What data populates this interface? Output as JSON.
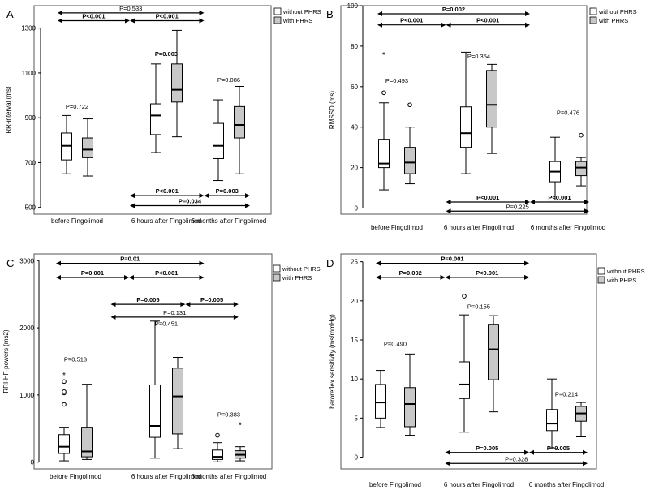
{
  "legend": {
    "without": "without PHRS",
    "with": "with PHRS"
  },
  "colors": {
    "without": "#ffffff",
    "with": "#c8c8c8",
    "line": "#000000"
  },
  "chart_data": [
    {
      "type": "box",
      "panel_letter": "A",
      "ylabel": "RR-interval (ms)",
      "ylim": [
        470,
        1400
      ],
      "yticks": [
        500,
        700,
        900,
        1100,
        1300
      ],
      "categories": [
        "before Fingolimod",
        "6 hours after Fingolimod",
        "6 months after Fingolimod"
      ],
      "series": [
        {
          "name": "without PHRS",
          "boxes": [
            {
              "min": 650,
              "q1": 712,
              "median": 775,
              "q3": 832,
              "max": 910,
              "outliers": [],
              "extremes": []
            },
            {
              "min": 745,
              "q1": 825,
              "median": 910,
              "q3": 962,
              "max": 1140,
              "outliers": [],
              "extremes": []
            },
            {
              "min": 620,
              "q1": 718,
              "median": 775,
              "q3": 875,
              "max": 980,
              "outliers": [],
              "extremes": []
            }
          ]
        },
        {
          "name": "with PHRS",
          "boxes": [
            {
              "min": 640,
              "q1": 722,
              "median": 758,
              "q3": 810,
              "max": 895,
              "outliers": [],
              "extremes": []
            },
            {
              "min": 815,
              "q1": 970,
              "median": 1025,
              "q3": 1140,
              "max": 1290,
              "outliers": [],
              "extremes": []
            },
            {
              "min": 650,
              "q1": 810,
              "median": 868,
              "q3": 950,
              "max": 1040,
              "outliers": [],
              "extremes": []
            }
          ]
        }
      ],
      "annotations": [
        {
          "label": "P=0.722",
          "x": 0.5,
          "y": 940
        },
        {
          "label": "P=0.003",
          "x": 1.5,
          "y": 1175,
          "bold": true
        },
        {
          "label": "P=0.086",
          "x": 2.5,
          "y": 1060
        }
      ],
      "brackets": [
        {
          "label": "P=0.533",
          "from": 0,
          "to": 2,
          "y": 1368,
          "bold": false
        },
        {
          "label": "P<0.001",
          "from": 0,
          "to": 1,
          "y": 1333,
          "bold": true
        },
        {
          "label": "P<0.001",
          "from": 1,
          "to": 2,
          "y": 1333,
          "bold": true
        },
        {
          "label": "P<0.001",
          "from": 1,
          "to": 2,
          "y": 553,
          "bold": true,
          "row": "bottom"
        },
        {
          "label": "P=0.003",
          "from": 2,
          "to": 3,
          "y": 553,
          "bold": true,
          "row": "bottom"
        },
        {
          "label": "P=0.034",
          "from": 1,
          "to": 3,
          "y": 508,
          "bold": true,
          "row": "bottom"
        }
      ]
    },
    {
      "type": "box",
      "panel_letter": "B",
      "ylabel": "RMSSD (ms)",
      "ylim": [
        -3,
        100
      ],
      "yticks": [
        0,
        20,
        40,
        60,
        80,
        100
      ],
      "categories": [
        "before Fingolimod",
        "6 hours after Fingolimod",
        "6 months after Fingolimod"
      ],
      "series": [
        {
          "name": "without PHRS",
          "boxes": [
            {
              "min": 9,
              "q1": 20,
              "median": 22,
              "q3": 34,
              "max": 52,
              "outliers": [
                57
              ],
              "extremes": [
                76
              ]
            },
            {
              "min": 17,
              "q1": 30,
              "median": 37,
              "q3": 50,
              "max": 77,
              "outliers": [],
              "extremes": []
            },
            {
              "min": 4,
              "q1": 13,
              "median": 18,
              "q3": 23,
              "max": 35,
              "outliers": [],
              "extremes": []
            }
          ]
        },
        {
          "name": "with PHRS",
          "boxes": [
            {
              "min": 12,
              "q1": 17,
              "median": 22.5,
              "q3": 30,
              "max": 40,
              "outliers": [
                51
              ],
              "extremes": []
            },
            {
              "min": 27,
              "q1": 40,
              "median": 51,
              "q3": 68,
              "max": 71,
              "outliers": [],
              "extremes": []
            },
            {
              "min": 11,
              "q1": 16,
              "median": 20,
              "q3": 23,
              "max": 25,
              "outliers": [
                36
              ],
              "extremes": []
            }
          ]
        }
      ],
      "annotations": [
        {
          "label": "P=0.493",
          "x": 0.5,
          "y": 62
        },
        {
          "label": "P=0.354",
          "x": 1.5,
          "y": 74
        },
        {
          "label": "P=0.476",
          "x": 2.5,
          "y": 46
        }
      ],
      "brackets": [
        {
          "label": "P=0.002",
          "from": 0,
          "to": 2,
          "y": 96,
          "bold": true
        },
        {
          "label": "P<0.001",
          "from": 0,
          "to": 1,
          "y": 90.5,
          "bold": true
        },
        {
          "label": "P<0.001",
          "from": 1,
          "to": 2,
          "y": 90.5,
          "bold": true
        },
        {
          "label": "P<0.001",
          "from": 1,
          "to": 2,
          "y": 3,
          "bold": true,
          "row": "bottom"
        },
        {
          "label": "P<0.001",
          "from": 2,
          "to": 3,
          "y": 3,
          "bold": true,
          "row": "bottom"
        },
        {
          "label": "P=0.225",
          "from": 1,
          "to": 3,
          "y": -1.5,
          "bold": false,
          "row": "bottom"
        }
      ]
    },
    {
      "type": "box",
      "panel_letter": "C",
      "ylabel": "RRI-HF-powers (ms2)",
      "ylim": [
        -100,
        3100
      ],
      "yticks": [
        0,
        1000,
        2000,
        3000
      ],
      "categories": [
        "before Fingolimod",
        "6 hours after Fingolimod",
        "6 months after Fingolimod"
      ],
      "series": [
        {
          "name": "without PHRS",
          "boxes": [
            {
              "min": 20,
              "q1": 130,
              "median": 230,
              "q3": 410,
              "max": 520,
              "outliers": [
                860,
                1030,
                1050,
                1200
              ],
              "extremes": [
                1300
              ]
            },
            {
              "min": 60,
              "q1": 370,
              "median": 540,
              "q3": 1150,
              "max": 2100,
              "outliers": [],
              "extremes": []
            },
            {
              "min": 5,
              "q1": 40,
              "median": 80,
              "q3": 180,
              "max": 290,
              "outliers": [
                400
              ],
              "extremes": []
            }
          ]
        },
        {
          "name": "with PHRS",
          "boxes": [
            {
              "min": 40,
              "q1": 80,
              "median": 160,
              "q3": 520,
              "max": 1160,
              "outliers": [],
              "extremes": []
            },
            {
              "min": 200,
              "q1": 420,
              "median": 980,
              "q3": 1400,
              "max": 1560,
              "outliers": [],
              "extremes": []
            },
            {
              "min": 20,
              "q1": 60,
              "median": 110,
              "q3": 170,
              "max": 230,
              "outliers": [],
              "extremes": [
                560
              ]
            }
          ]
        }
      ],
      "annotations": [
        {
          "label": "P=0.513",
          "x": 0.5,
          "y": 1500
        },
        {
          "label": "P=0.451",
          "x": 1.5,
          "y": 2030
        },
        {
          "label": "P=0.383",
          "x": 2.5,
          "y": 680
        }
      ],
      "brackets": [
        {
          "label": "P=0.01",
          "from": 0,
          "to": 2,
          "y": 2960,
          "bold": true
        },
        {
          "label": "P=0.001",
          "from": 0,
          "to": 1,
          "y": 2750,
          "bold": true
        },
        {
          "label": "P<0.001",
          "from": 1,
          "to": 2,
          "y": 2750,
          "bold": true
        },
        {
          "label": "P=0.005",
          "from": 0.75,
          "to": 1.75,
          "y": 2350,
          "bold": true
        },
        {
          "label": "P=0.005",
          "from": 1.75,
          "to": 2.75,
          "y": 2350,
          "bold": true
        },
        {
          "label": "P=0.131",
          "from": 0.75,
          "to": 2.75,
          "y": 2160,
          "bold": false
        }
      ]
    },
    {
      "type": "box",
      "panel_letter": "D",
      "ylabel": "baroreflex sensitivity (ms/mmHg)",
      "ylim": [
        -1.5,
        26
      ],
      "yticks": [
        0,
        5,
        10,
        15,
        20,
        25
      ],
      "categories": [
        "before Fingolimod",
        "6 hours after Fingolimod",
        "6 months after Fingolimod"
      ],
      "series": [
        {
          "name": "without PHRS",
          "boxes": [
            {
              "min": 3.8,
              "q1": 5.0,
              "median": 7.0,
              "q3": 9.3,
              "max": 11.1,
              "outliers": [],
              "extremes": []
            },
            {
              "min": 3.2,
              "q1": 7.5,
              "median": 9.3,
              "q3": 12.2,
              "max": 18.2,
              "outliers": [
                20.6
              ],
              "extremes": []
            },
            {
              "min": 1.1,
              "q1": 3.4,
              "median": 4.3,
              "q3": 6.1,
              "max": 10.0,
              "outliers": [],
              "extremes": []
            }
          ]
        },
        {
          "name": "with PHRS",
          "boxes": [
            {
              "min": 2.8,
              "q1": 3.9,
              "median": 6.8,
              "q3": 8.9,
              "max": 13.2,
              "outliers": [],
              "extremes": []
            },
            {
              "min": 5.8,
              "q1": 9.9,
              "median": 13.8,
              "q3": 17.0,
              "max": 18.1,
              "outliers": [],
              "extremes": []
            },
            {
              "min": 2.6,
              "q1": 4.6,
              "median": 5.6,
              "q3": 6.5,
              "max": 7.0,
              "outliers": [],
              "extremes": []
            }
          ]
        }
      ],
      "annotations": [
        {
          "label": "P=0.490",
          "x": 0.5,
          "y": 14.2
        },
        {
          "label": "P=0.155",
          "x": 1.5,
          "y": 19.0
        },
        {
          "label": "P=0.214",
          "x": 2.5,
          "y": 7.8
        }
      ],
      "brackets": [
        {
          "label": "P=0.001",
          "from": 0,
          "to": 2,
          "y": 24.8,
          "bold": true
        },
        {
          "label": "P=0.002",
          "from": 0,
          "to": 1,
          "y": 23.0,
          "bold": true
        },
        {
          "label": "P<0.001",
          "from": 1,
          "to": 2,
          "y": 23.0,
          "bold": true
        },
        {
          "label": "P=0.005",
          "from": 1,
          "to": 2,
          "y": 0.6,
          "bold": true,
          "row": "bottom"
        },
        {
          "label": "P=0.005",
          "from": 2,
          "to": 3,
          "y": 0.6,
          "bold": true,
          "row": "bottom"
        },
        {
          "label": "P=0.328",
          "from": 1,
          "to": 3,
          "y": -0.8,
          "bold": false,
          "row": "bottom"
        }
      ]
    }
  ]
}
